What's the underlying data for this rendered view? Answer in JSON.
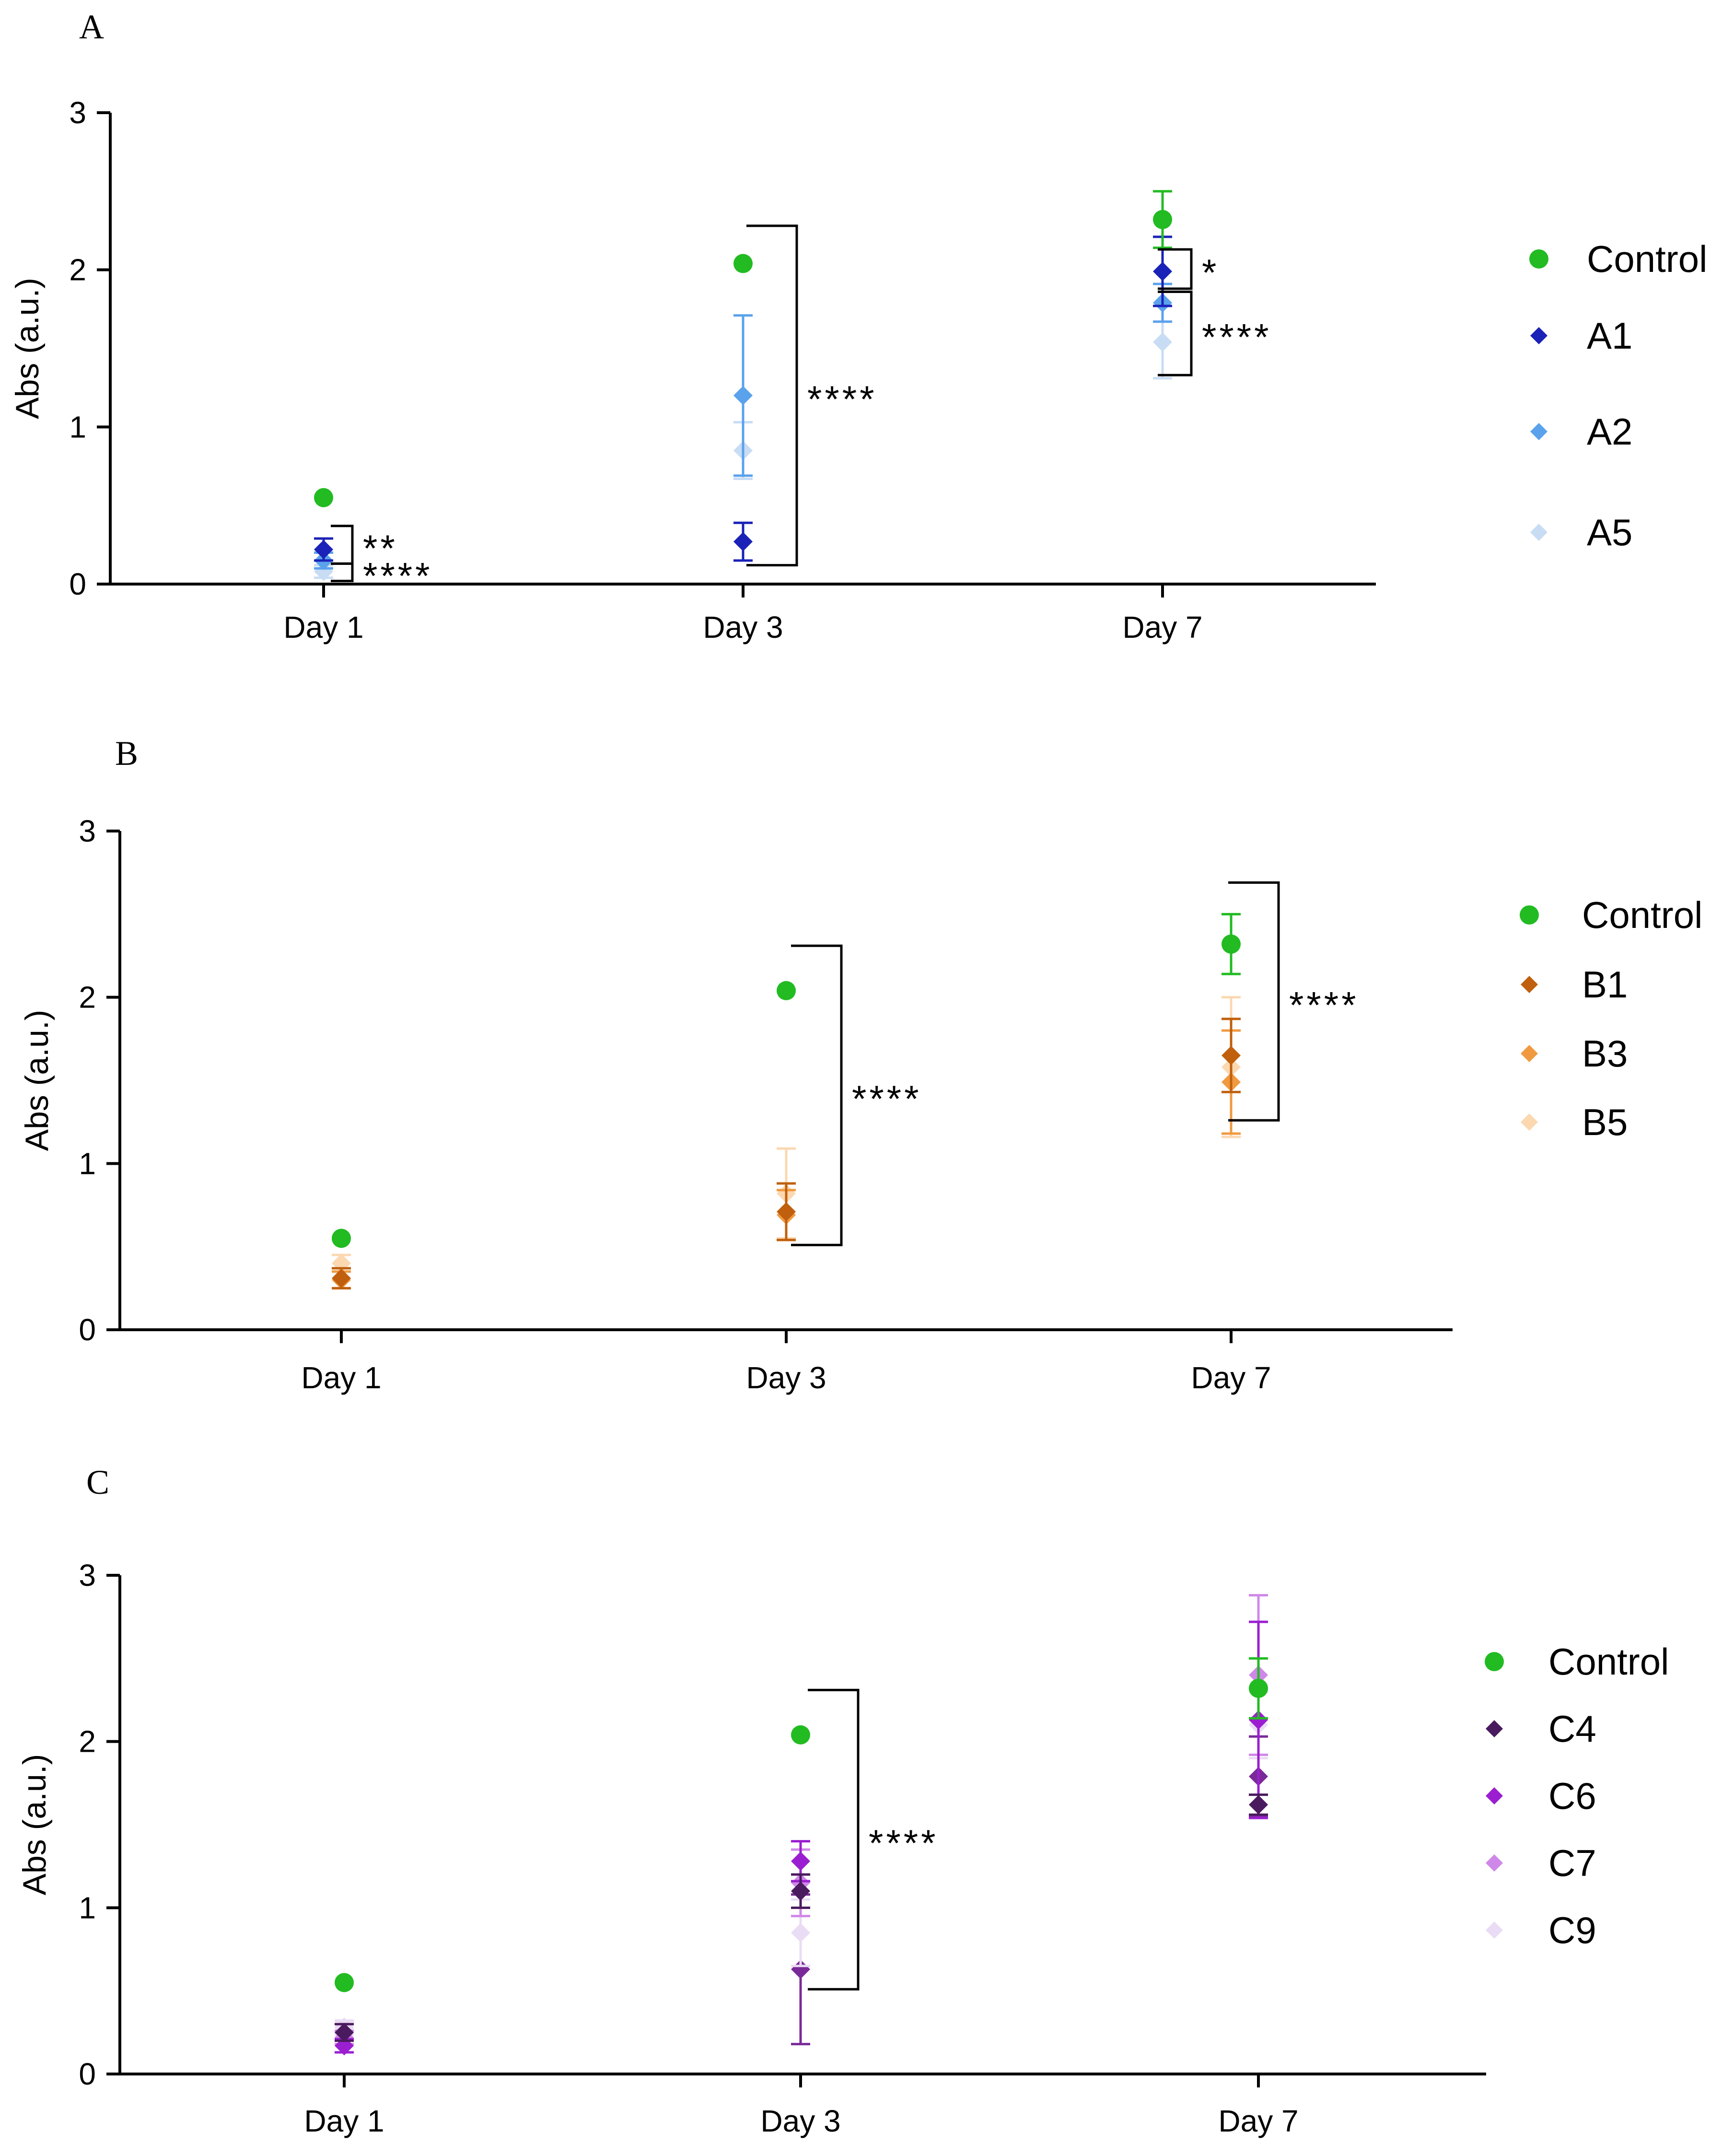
{
  "figure": {
    "type": "scatter with error bars (3 panels)"
  },
  "chart_data": [
    {
      "type": "scatter",
      "panel_label": "A",
      "title": "",
      "ylabel": "Abs (a.u.)",
      "xlabel": "",
      "categories": [
        "Day 1",
        "Day 3",
        "Day 7"
      ],
      "ylim": [
        0,
        3
      ],
      "yticks": [
        "0",
        "1",
        "2",
        "3"
      ],
      "legend_position": "right",
      "series": [
        {
          "name": "Control",
          "marker": "circle",
          "color": "#22bb22",
          "values": [
            0.55,
            2.04,
            2.32
          ],
          "errors": [
            0.0,
            0.0,
            0.18
          ]
        },
        {
          "name": "A1",
          "marker": "diamond",
          "color": "#1a22b8",
          "values": [
            0.22,
            0.27,
            1.99
          ],
          "errors": [
            0.07,
            0.12,
            0.22
          ]
        },
        {
          "name": "A2",
          "marker": "diamond",
          "color": "#5aa2ec",
          "values": [
            0.15,
            1.2,
            1.79
          ],
          "errors": [
            0.05,
            0.51,
            0.12
          ]
        },
        {
          "name": "A5",
          "marker": "diamond",
          "color": "#c8dcf4",
          "values": [
            0.08,
            0.85,
            1.54
          ],
          "errors": [
            0.04,
            0.18,
            0.23
          ]
        }
      ],
      "significance": [
        {
          "label": "**",
          "category": "Day 1",
          "from": 0.13,
          "to": 0.37
        },
        {
          "label": "****",
          "category": "Day 1",
          "from": 0.02,
          "to": 0.13
        },
        {
          "label": "****",
          "category": "Day 3",
          "from": 0.12,
          "to": 2.28
        },
        {
          "label": "*",
          "category": "Day 7",
          "from": 1.88,
          "to": 2.13
        },
        {
          "label": "****",
          "category": "Day 7",
          "from": 1.33,
          "to": 1.86
        }
      ]
    },
    {
      "type": "scatter",
      "panel_label": "B",
      "title": "",
      "ylabel": "Abs (a.u.)",
      "xlabel": "",
      "categories": [
        "Day 1",
        "Day 3",
        "Day 7"
      ],
      "ylim": [
        0,
        3
      ],
      "yticks": [
        "0",
        "1",
        "2",
        "3"
      ],
      "legend_position": "right",
      "series": [
        {
          "name": "Control",
          "marker": "circle",
          "color": "#22bb22",
          "values": [
            0.55,
            2.04,
            2.32
          ],
          "errors": [
            0.0,
            0.0,
            0.18
          ]
        },
        {
          "name": "B1",
          "marker": "diamond",
          "color": "#c0600e",
          "values": [
            0.31,
            0.71,
            1.65
          ],
          "errors": [
            0.06,
            0.17,
            0.22
          ]
        },
        {
          "name": "B3",
          "marker": "diamond",
          "color": "#f09a40",
          "values": [
            0.3,
            0.69,
            1.49
          ],
          "errors": [
            0.05,
            0.15,
            0.31
          ]
        },
        {
          "name": "B5",
          "marker": "diamond",
          "color": "#fbd8b0",
          "values": [
            0.4,
            0.82,
            1.58
          ],
          "errors": [
            0.05,
            0.27,
            0.42
          ]
        }
      ],
      "significance": [
        {
          "label": "****",
          "category": "Day 3",
          "from": 0.51,
          "to": 2.31
        },
        {
          "label": "****",
          "category": "Day 7",
          "from": 1.26,
          "to": 2.69
        }
      ]
    },
    {
      "type": "scatter",
      "panel_label": "C",
      "title": "",
      "ylabel": "Abs (a.u.)",
      "xlabel": "",
      "categories": [
        "Day 1",
        "Day 3",
        "Day 7"
      ],
      "ylim": [
        0,
        3
      ],
      "yticks": [
        "0",
        "1",
        "2",
        "3"
      ],
      "legend_position": "right",
      "series": [
        {
          "name": "Control",
          "marker": "circle",
          "color": "#22bb22",
          "values": [
            0.55,
            2.04,
            2.32
          ],
          "errors": [
            0.0,
            0.0,
            0.18
          ]
        },
        {
          "name": "C4",
          "marker": "diamond",
          "color": "#4a1a5e",
          "values": [
            0.25,
            1.1,
            1.62
          ],
          "errors": [
            0.05,
            0.1,
            0.06
          ]
        },
        {
          "name": "C6",
          "marker": "diamond",
          "color": "#9b1fd0",
          "values": [
            0.17,
            1.28,
            2.13
          ],
          "errors": [
            0.04,
            0.12,
            0.59
          ]
        },
        {
          "name": "C7",
          "marker": "diamond",
          "color": "#d088e8",
          "values": [
            0.22,
            1.15,
            2.4
          ],
          "errors": [
            0.04,
            0.2,
            0.48
          ]
        },
        {
          "name": "C9",
          "marker": "diamond",
          "color": "#eadcf4",
          "values": [
            0.28,
            0.85,
            2.1
          ],
          "errors": [
            0.04,
            0.2,
            0.2
          ]
        },
        {
          "name": "",
          "marker": "diamond",
          "color": "#7a2a98",
          "values": [
            0.28,
            0.63,
            1.79
          ],
          "errors": [
            0.04,
            0.45,
            0.24
          ]
        }
      ],
      "significance": [
        {
          "label": "****",
          "category": "Day 3",
          "from": 0.51,
          "to": 2.31
        }
      ]
    }
  ]
}
